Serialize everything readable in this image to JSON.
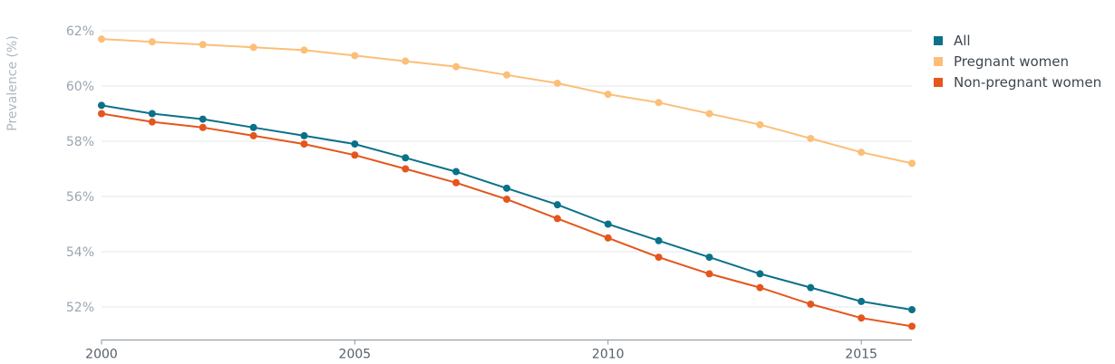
{
  "chart_data": {
    "type": "line",
    "xlabel": "",
    "ylabel": "Prevalence (%)",
    "x": [
      2000,
      2001,
      2002,
      2003,
      2004,
      2005,
      2006,
      2007,
      2008,
      2009,
      2010,
      2011,
      2012,
      2013,
      2014,
      2015,
      2016
    ],
    "x_ticks": [
      "2000",
      "2005",
      "2010",
      "2015"
    ],
    "y_ticks": [
      "52%",
      "54%",
      "56%",
      "58%",
      "60%",
      "62%"
    ],
    "ylim": [
      51,
      62
    ],
    "xlim": [
      2000,
      2016
    ],
    "grid": "horizontal",
    "legend_position": "right",
    "series": [
      {
        "name": "All",
        "color": "#0b7189",
        "values": [
          59.3,
          59.0,
          58.8,
          58.5,
          58.2,
          57.9,
          57.4,
          56.9,
          56.3,
          55.7,
          55.0,
          54.4,
          53.8,
          53.2,
          52.7,
          52.2,
          51.9
        ]
      },
      {
        "name": "Pregnant women",
        "color": "#fbbf77",
        "values": [
          61.7,
          61.6,
          61.5,
          61.4,
          61.3,
          61.1,
          60.9,
          60.7,
          60.4,
          60.1,
          59.7,
          59.4,
          59.0,
          58.6,
          58.1,
          57.6,
          57.2
        ]
      },
      {
        "name": "Non-pregnant women",
        "color": "#e4561c",
        "values": [
          59.0,
          58.7,
          58.5,
          58.2,
          57.9,
          57.5,
          57.0,
          56.5,
          55.9,
          55.2,
          54.5,
          53.8,
          53.2,
          52.7,
          52.1,
          51.6,
          51.3
        ]
      }
    ]
  }
}
